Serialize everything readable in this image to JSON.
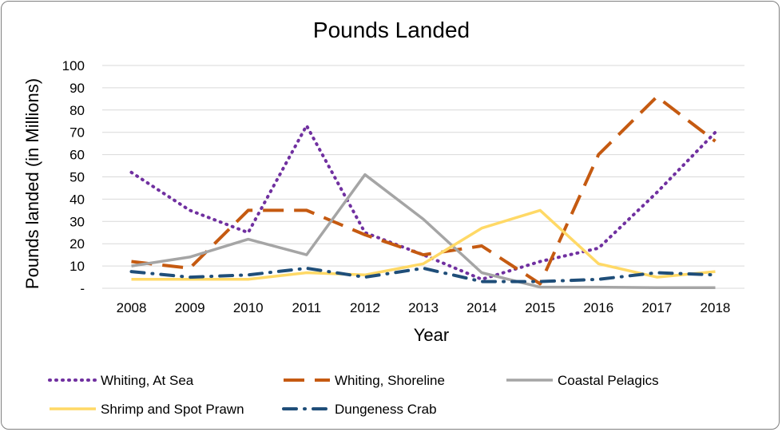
{
  "chart_data": {
    "type": "line",
    "title": "Pounds Landed",
    "xlabel": "Year",
    "ylabel": "Pounds landed (in Millions)",
    "ylim": [
      0,
      100
    ],
    "y_ticks": [
      "-",
      "10",
      "20",
      "30",
      "40",
      "50",
      "60",
      "70",
      "80",
      "90",
      "100"
    ],
    "grid": true,
    "legend_position": "bottom",
    "categories": [
      "2008",
      "2009",
      "2010",
      "2011",
      "2012",
      "2013",
      "2014",
      "2015",
      "2016",
      "2017",
      "2018"
    ],
    "series": [
      {
        "name": "Whiting, At Sea",
        "color": "#7030a0",
        "dash": "dotted",
        "values": [
          52,
          35,
          25,
          73,
          25,
          15,
          4,
          12,
          18,
          43,
          70
        ]
      },
      {
        "name": "Whiting, Shoreline",
        "color": "#c55a11",
        "dash": "long-dash",
        "values": [
          12,
          9,
          35,
          35,
          24,
          15,
          19,
          2,
          60,
          86,
          66
        ]
      },
      {
        "name": "Coastal Pelagics",
        "color": "#a5a5a5",
        "dash": "solid",
        "values": [
          10,
          14,
          22,
          15,
          51,
          31,
          7,
          0.5,
          0.5,
          0.3,
          0.3
        ]
      },
      {
        "name": "Shrimp and Spot Prawn",
        "color": "#ffd966",
        "dash": "solid",
        "values": [
          4,
          4,
          4,
          7,
          6,
          11,
          27,
          35,
          11,
          5,
          7.5
        ]
      },
      {
        "name": "Dungeness Crab",
        "color": "#1f4e79",
        "dash": "dash-dot",
        "values": [
          7.5,
          5,
          6,
          9,
          5,
          9,
          3,
          3,
          4,
          7,
          6
        ]
      }
    ]
  }
}
